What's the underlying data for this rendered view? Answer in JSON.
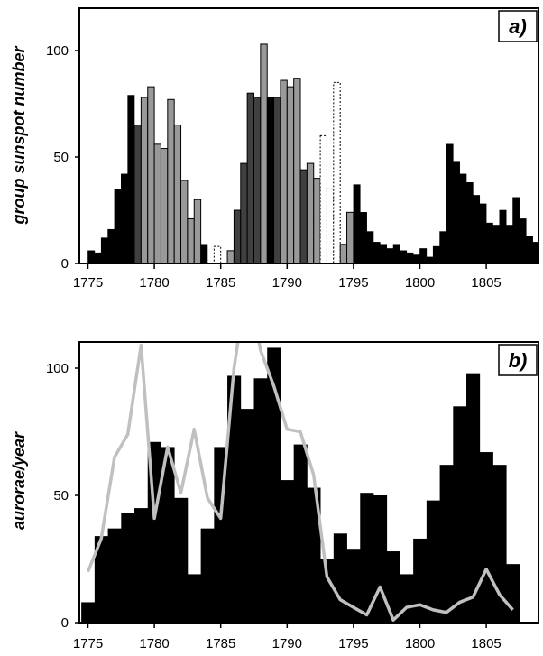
{
  "chart_data": [
    {
      "type": "bar",
      "panel_label": "a)",
      "ylabel": "group sunspot number",
      "xlim": [
        1775,
        1808
      ],
      "ylim": [
        0,
        125
      ],
      "xticks": [
        "1775",
        "1780",
        "1785",
        "1790",
        "1795",
        "1800",
        "1805"
      ],
      "yticks": [
        "0",
        "50",
        "100"
      ],
      "grid": false,
      "colors": {
        "black": "#000000",
        "dark": "#404040",
        "gray": "#999999",
        "dotted": "#ffffff"
      },
      "bars": [
        {
          "x": 1775.25,
          "y": 6,
          "s": "black"
        },
        {
          "x": 1775.75,
          "y": 5,
          "s": "black"
        },
        {
          "x": 1776.25,
          "y": 12,
          "s": "black"
        },
        {
          "x": 1776.75,
          "y": 16,
          "s": "black"
        },
        {
          "x": 1777.25,
          "y": 35,
          "s": "black"
        },
        {
          "x": 1777.75,
          "y": 42,
          "s": "black"
        },
        {
          "x": 1778.25,
          "y": 79,
          "s": "black"
        },
        {
          "x": 1778.75,
          "y": 65,
          "s": "dark"
        },
        {
          "x": 1779.25,
          "y": 78,
          "s": "gray"
        },
        {
          "x": 1779.75,
          "y": 83,
          "s": "gray"
        },
        {
          "x": 1780.25,
          "y": 56,
          "s": "gray"
        },
        {
          "x": 1780.75,
          "y": 54,
          "s": "gray"
        },
        {
          "x": 1781.25,
          "y": 77,
          "s": "gray"
        },
        {
          "x": 1781.75,
          "y": 65,
          "s": "gray"
        },
        {
          "x": 1782.25,
          "y": 39,
          "s": "gray"
        },
        {
          "x": 1782.75,
          "y": 21,
          "s": "gray"
        },
        {
          "x": 1783.25,
          "y": 30,
          "s": "gray"
        },
        {
          "x": 1783.75,
          "y": 9,
          "s": "black"
        },
        {
          "x": 1784.75,
          "y": 8,
          "s": "dotted"
        },
        {
          "x": 1785.75,
          "y": 6,
          "s": "gray"
        },
        {
          "x": 1786.25,
          "y": 25,
          "s": "dark"
        },
        {
          "x": 1786.75,
          "y": 47,
          "s": "dark"
        },
        {
          "x": 1787.25,
          "y": 80,
          "s": "dark"
        },
        {
          "x": 1787.75,
          "y": 78,
          "s": "dark"
        },
        {
          "x": 1788.25,
          "y": 103,
          "s": "gray"
        },
        {
          "x": 1788.75,
          "y": 78,
          "s": "black"
        },
        {
          "x": 1789.25,
          "y": 78,
          "s": "dark"
        },
        {
          "x": 1789.75,
          "y": 86,
          "s": "gray"
        },
        {
          "x": 1790.25,
          "y": 83,
          "s": "gray"
        },
        {
          "x": 1790.75,
          "y": 87,
          "s": "gray"
        },
        {
          "x": 1791.25,
          "y": 44,
          "s": "dark"
        },
        {
          "x": 1791.75,
          "y": 47,
          "s": "gray"
        },
        {
          "x": 1792.25,
          "y": 40,
          "s": "gray"
        },
        {
          "x": 1792.75,
          "y": 60,
          "s": "dotted"
        },
        {
          "x": 1793.25,
          "y": 35,
          "s": "dotted"
        },
        {
          "x": 1793.75,
          "y": 85,
          "s": "dotted"
        },
        {
          "x": 1794.25,
          "y": 9,
          "s": "gray"
        },
        {
          "x": 1794.75,
          "y": 24,
          "s": "gray"
        },
        {
          "x": 1795.25,
          "y": 37,
          "s": "black"
        },
        {
          "x": 1795.75,
          "y": 24,
          "s": "black"
        },
        {
          "x": 1796.25,
          "y": 15,
          "s": "black"
        },
        {
          "x": 1796.75,
          "y": 10,
          "s": "black"
        },
        {
          "x": 1797.25,
          "y": 9,
          "s": "black"
        },
        {
          "x": 1797.75,
          "y": 7,
          "s": "black"
        },
        {
          "x": 1798.25,
          "y": 9,
          "s": "black"
        },
        {
          "x": 1798.75,
          "y": 6,
          "s": "black"
        },
        {
          "x": 1799.25,
          "y": 5,
          "s": "black"
        },
        {
          "x": 1799.75,
          "y": 4,
          "s": "black"
        },
        {
          "x": 1800.25,
          "y": 7,
          "s": "black"
        },
        {
          "x": 1800.75,
          "y": 3,
          "s": "black"
        },
        {
          "x": 1801.25,
          "y": 8,
          "s": "black"
        },
        {
          "x": 1801.75,
          "y": 15,
          "s": "black"
        },
        {
          "x": 1802.25,
          "y": 56,
          "s": "black"
        },
        {
          "x": 1802.75,
          "y": 48,
          "s": "black"
        },
        {
          "x": 1803.25,
          "y": 42,
          "s": "black"
        },
        {
          "x": 1803.75,
          "y": 38,
          "s": "black"
        },
        {
          "x": 1804.25,
          "y": 32,
          "s": "black"
        },
        {
          "x": 1804.75,
          "y": 28,
          "s": "black"
        },
        {
          "x": 1805.25,
          "y": 19,
          "s": "black"
        },
        {
          "x": 1805.75,
          "y": 18,
          "s": "black"
        },
        {
          "x": 1806.25,
          "y": 25,
          "s": "black"
        },
        {
          "x": 1806.75,
          "y": 18,
          "s": "black"
        },
        {
          "x": 1807.25,
          "y": 31,
          "s": "black"
        },
        {
          "x": 1807.75,
          "y": 21,
          "s": "black"
        },
        {
          "x": 1808.25,
          "y": 13,
          "s": "black"
        },
        {
          "x": 1808.75,
          "y": 10,
          "s": "black"
        }
      ]
    },
    {
      "type": "bar+line",
      "panel_label": "b)",
      "ylabel": "aurorae/year",
      "xlim": [
        1775,
        1808
      ],
      "ylim": [
        0,
        110
      ],
      "xticks": [
        "1775",
        "1780",
        "1785",
        "1790",
        "1795",
        "1800",
        "1805"
      ],
      "yticks": [
        "0",
        "50",
        "100"
      ],
      "grid": false,
      "colors": {
        "bars": "#000000",
        "line": "#c0c0c0"
      },
      "bar_years": [
        1775,
        1776,
        1777,
        1778,
        1779,
        1780,
        1781,
        1782,
        1783,
        1784,
        1785,
        1786,
        1787,
        1788,
        1789,
        1790,
        1791,
        1792,
        1793,
        1794,
        1795,
        1796,
        1797,
        1798,
        1799,
        1800,
        1801,
        1802,
        1803,
        1804,
        1805,
        1806,
        1807
      ],
      "bar_values": [
        8,
        34,
        37,
        43,
        45,
        71,
        69,
        49,
        19,
        37,
        69,
        97,
        84,
        96,
        108,
        56,
        70,
        53,
        25,
        35,
        29,
        51,
        50,
        28,
        19,
        33,
        48,
        62,
        85,
        98,
        67,
        62,
        23
      ],
      "line_x": [
        1775,
        1776,
        1777,
        1778,
        1779,
        1780,
        1781,
        1782,
        1783,
        1784,
        1785,
        1786,
        1787,
        1788,
        1789,
        1790,
        1791,
        1792,
        1793,
        1794,
        1795,
        1796,
        1797,
        1798,
        1799,
        1800,
        1801,
        1802,
        1803,
        1804,
        1805,
        1806,
        1807
      ],
      "line_y": [
        20,
        33,
        65,
        74,
        109,
        41,
        69,
        51,
        76,
        49,
        41,
        100,
        135,
        107,
        93,
        76,
        75,
        58,
        18,
        9,
        6,
        3,
        14,
        1,
        6,
        7,
        5,
        4,
        8,
        10,
        21,
        11,
        5
      ]
    }
  ]
}
